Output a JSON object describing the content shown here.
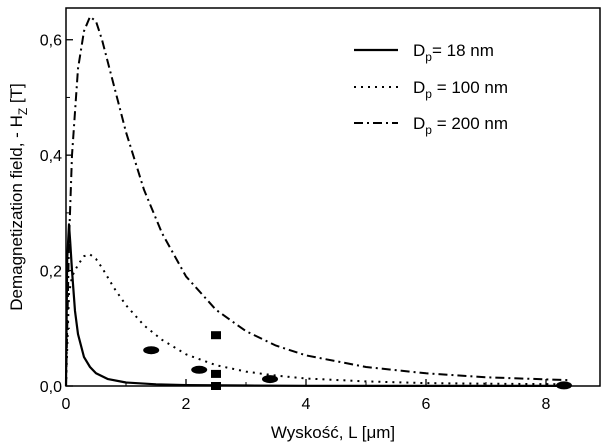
{
  "chart_data": {
    "type": "line",
    "xlabel": "Wyskość, L [",
    "xlabel_mu": "μ",
    "xlabel_unit_tail": "m]",
    "ylabel": "Demagnetization field, - H",
    "ylabel_sub": "Z",
    "ylabel_tail": " [T]",
    "xlim": [
      0,
      8.9
    ],
    "ylim": [
      0,
      0.655
    ],
    "x_ticks": [
      {
        "v": 0,
        "label": "0"
      },
      {
        "v": 2,
        "label": "2"
      },
      {
        "v": 4,
        "label": "4"
      },
      {
        "v": 6,
        "label": "6"
      },
      {
        "v": 8,
        "label": "8"
      }
    ],
    "y_ticks": [
      {
        "v": 0.0,
        "label": "0,0"
      },
      {
        "v": 0.2,
        "label": "0,2"
      },
      {
        "v": 0.4,
        "label": "0,4"
      },
      {
        "v": 0.6,
        "label": "0,6"
      }
    ],
    "legend": [
      {
        "key": "d18",
        "prefix": "D",
        "sub": "p",
        "suffix": "= 18 nm"
      },
      {
        "key": "d100",
        "prefix": "D",
        "sub": "p",
        "suffix": " = 100 nm"
      },
      {
        "key": "d200",
        "prefix": "D",
        "sub": "p",
        "suffix": " = 200 nm"
      }
    ],
    "series": [
      {
        "key": "d18",
        "style": "solid",
        "x": [
          0,
          0.02,
          0.05,
          0.07,
          0.1,
          0.15,
          0.2,
          0.3,
          0.4,
          0.5,
          0.7,
          1.0,
          1.5,
          2.0,
          3.0,
          4.0,
          6.0,
          8.4
        ],
        "y": [
          0,
          0.22,
          0.28,
          0.25,
          0.2,
          0.13,
          0.09,
          0.05,
          0.033,
          0.022,
          0.012,
          0.006,
          0.003,
          0.0015,
          0.0008,
          0.0004,
          0.0002,
          0.0001
        ]
      },
      {
        "key": "d100",
        "style": "dotted",
        "x": [
          0,
          0.05,
          0.1,
          0.2,
          0.3,
          0.4,
          0.5,
          0.6,
          0.8,
          1.0,
          1.3,
          1.6,
          2.0,
          2.5,
          3.0,
          3.5,
          4.0,
          5.0,
          6.0,
          7.0,
          8.4
        ],
        "y": [
          0.0,
          0.16,
          0.19,
          0.21,
          0.225,
          0.228,
          0.22,
          0.205,
          0.17,
          0.14,
          0.105,
          0.08,
          0.055,
          0.036,
          0.025,
          0.018,
          0.013,
          0.008,
          0.005,
          0.004,
          0.003
        ]
      },
      {
        "key": "d200",
        "style": "dashdot",
        "x": [
          0,
          0.05,
          0.1,
          0.2,
          0.3,
          0.4,
          0.5,
          0.6,
          0.8,
          1.0,
          1.3,
          1.6,
          2.0,
          2.5,
          3.0,
          3.5,
          4.0,
          5.0,
          6.0,
          7.0,
          8.4
        ],
        "y": [
          0.0,
          0.25,
          0.4,
          0.55,
          0.615,
          0.64,
          0.632,
          0.6,
          0.52,
          0.44,
          0.34,
          0.265,
          0.19,
          0.132,
          0.095,
          0.07,
          0.053,
          0.033,
          0.022,
          0.015,
          0.01
        ]
      }
    ],
    "markers": [
      {
        "shape": "square",
        "x": 2.5,
        "y": 0.088
      },
      {
        "shape": "square",
        "x": 2.5,
        "y": 0.021
      },
      {
        "shape": "square",
        "x": 2.5,
        "y": 0.0
      },
      {
        "shape": "ellipse",
        "x": 1.42,
        "y": 0.062
      },
      {
        "shape": "ellipse",
        "x": 2.22,
        "y": 0.028
      },
      {
        "shape": "ellipse",
        "x": 3.4,
        "y": 0.012
      },
      {
        "shape": "ellipse",
        "x": 8.3,
        "y": 0.001
      }
    ],
    "grid": false,
    "legend_position": "top-right"
  }
}
